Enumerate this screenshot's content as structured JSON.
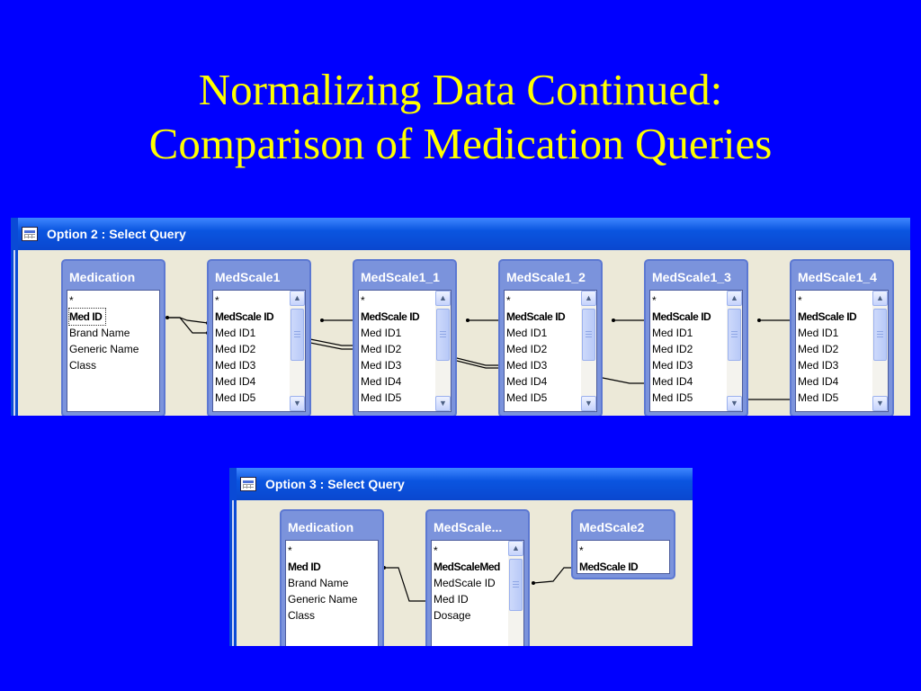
{
  "slide": {
    "title_line1": "Normalizing Data Continued:",
    "title_line2": "Comparison of Medication Queries"
  },
  "option2": {
    "window_title": "Option 2 : Select Query",
    "tables": [
      {
        "name": "Medication",
        "fields": [
          "*",
          "Med ID",
          "Brand Name",
          "Generic Name",
          "Class"
        ]
      },
      {
        "name": "MedScale1",
        "fields": [
          "*",
          "MedScale ID",
          "Med ID1",
          "Med ID2",
          "Med ID3",
          "Med ID4",
          "Med ID5"
        ]
      },
      {
        "name": "MedScale1_1",
        "fields": [
          "*",
          "MedScale ID",
          "Med ID1",
          "Med ID2",
          "Med ID3",
          "Med ID4",
          "Med ID5"
        ]
      },
      {
        "name": "MedScale1_2",
        "fields": [
          "*",
          "MedScale ID",
          "Med ID1",
          "Med ID2",
          "Med ID3",
          "Med ID4",
          "Med ID5"
        ]
      },
      {
        "name": "MedScale1_3",
        "fields": [
          "*",
          "MedScale ID",
          "Med ID1",
          "Med ID2",
          "Med ID3",
          "Med ID4",
          "Med ID5"
        ]
      },
      {
        "name": "MedScale1_4",
        "fields": [
          "*",
          "MedScale ID",
          "Med ID1",
          "Med ID2",
          "Med ID3",
          "Med ID4",
          "Med ID5"
        ]
      }
    ]
  },
  "option3": {
    "window_title": "Option 3 : Select Query",
    "tables": [
      {
        "name": "Medication",
        "fields": [
          "*",
          "Med ID",
          "Brand Name",
          "Generic Name",
          "Class"
        ]
      },
      {
        "name": "MedScale...",
        "fields": [
          "*",
          "MedScaleMed",
          "MedScale ID",
          "Med ID",
          "Dosage"
        ]
      },
      {
        "name": "MedScale2",
        "fields": [
          "*",
          "MedScale ID"
        ]
      }
    ]
  },
  "colors": {
    "slide_background": "#0000ff",
    "title_text": "#ffff00",
    "window_titlebar": "#0a55e0",
    "query_area": "#ece9d8",
    "table_frame": "#7b93dc"
  },
  "icons": {
    "window": "query-table-icon",
    "scroll_up": "scroll-up-arrow-icon",
    "scroll_down": "scroll-down-arrow-icon"
  }
}
